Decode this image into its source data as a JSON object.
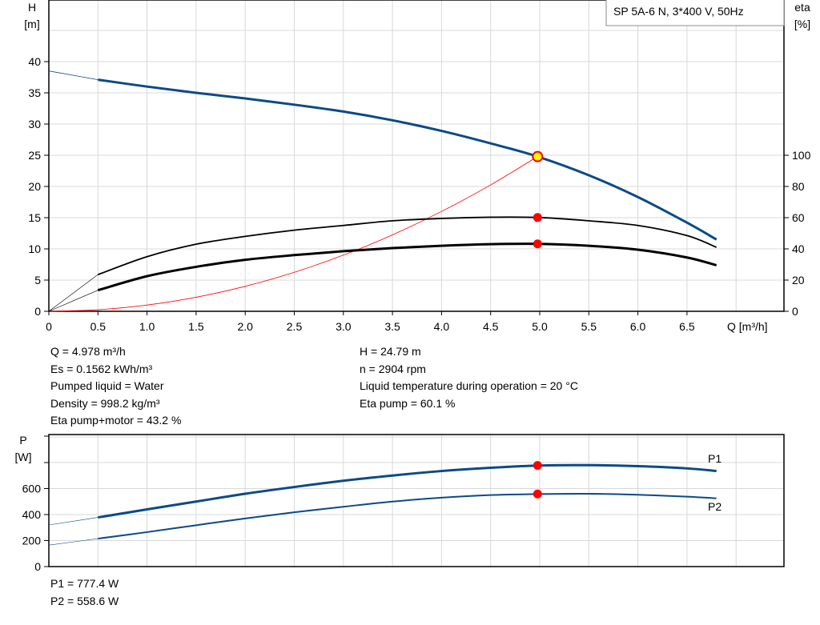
{
  "legend_title": "SP 5A-6 N, 3*400 V, 50Hz",
  "colors": {
    "head": "#0b4a87",
    "eta": "#000000",
    "system": "#ff0000",
    "point": "#ff0000",
    "duty_point_fill": "#ffff00",
    "power": "#0b4a87"
  },
  "chart_data": [
    {
      "type": "line",
      "xlabel": "Q [m³/h]",
      "ylabel": "H\n[m]",
      "ylabel_parts": [
        "H",
        "[m]"
      ],
      "y2label_parts": [
        "eta",
        "[%]"
      ],
      "xlim": [
        0,
        7.5
      ],
      "ylim": [
        0,
        50
      ],
      "y2lim": [
        0,
        100
      ],
      "xticks": [
        "0",
        "0.5",
        "1.0",
        "1.5",
        "2.0",
        "2.5",
        "3.0",
        "3.5",
        "4.0",
        "4.5",
        "5.0",
        "5.5",
        "6.0",
        "6.5"
      ],
      "yticks": [
        "0",
        "5",
        "10",
        "15",
        "20",
        "25",
        "30",
        "35",
        "40"
      ],
      "y2ticks": [
        "0",
        "20",
        "40",
        "60",
        "80",
        "100"
      ],
      "grid": true,
      "series": [
        {
          "id": "head",
          "axis": "H",
          "x": [
            0,
            0.5,
            1,
            1.5,
            2,
            2.5,
            3,
            3.5,
            4,
            4.5,
            4.978,
            5.5,
            6,
            6.5,
            6.8
          ],
          "y": [
            38.5,
            37.1,
            36,
            35,
            34.1,
            33.1,
            32,
            30.6,
            28.9,
            26.9,
            24.79,
            21.8,
            18.3,
            14.2,
            11.5
          ]
        },
        {
          "id": "eta_pump",
          "axis": "eta",
          "x": [
            0,
            0.5,
            1,
            1.5,
            2,
            2.5,
            3,
            3.5,
            4,
            4.5,
            5,
            5.5,
            6,
            6.5,
            6.8
          ],
          "y": [
            0,
            23.5,
            35,
            43,
            48,
            52,
            55,
            58,
            59.5,
            60.3,
            60.1,
            58,
            55,
            48.5,
            41
          ]
        },
        {
          "id": "eta_pump_motor",
          "axis": "eta",
          "x": [
            0,
            0.5,
            1,
            1.5,
            2,
            2.5,
            3,
            3.5,
            4,
            4.5,
            5,
            5.5,
            6,
            6.5,
            6.8
          ],
          "y": [
            0,
            13.5,
            22.5,
            28.5,
            33,
            36,
            38.5,
            40.5,
            42,
            43,
            43.2,
            42,
            39.5,
            34.5,
            29.5
          ]
        },
        {
          "id": "system_curve",
          "axis": "H",
          "x": [
            0,
            0.5,
            1,
            1.5,
            2,
            2.5,
            3,
            3.5,
            4,
            4.5,
            4.978
          ],
          "y": [
            0,
            0.25,
            1,
            2.25,
            4,
            6.25,
            9,
            12.25,
            16,
            20.25,
            24.79
          ]
        }
      ],
      "points": [
        {
          "id": "duty",
          "x": 4.978,
          "y": 24.79,
          "axis": "H"
        },
        {
          "id": "eta_pump_point",
          "x": 4.978,
          "y": 60.1,
          "axis": "eta"
        },
        {
          "id": "eta_total_point",
          "x": 4.978,
          "y": 43.2,
          "axis": "eta"
        }
      ]
    },
    {
      "type": "line",
      "ylabel_parts": [
        "P",
        "[W]"
      ],
      "xlim": [
        0,
        7.5
      ],
      "ylim": [
        0,
        1000
      ],
      "yticks": [
        "0",
        "200",
        "400",
        "600"
      ],
      "grid": true,
      "series": [
        {
          "id": "P1",
          "name": "P1",
          "x": [
            0,
            0.5,
            1,
            1.5,
            2,
            2.5,
            3,
            3.5,
            4,
            4.5,
            5,
            5.5,
            6,
            6.5,
            6.8
          ],
          "y": [
            320,
            378,
            440,
            500,
            560,
            612,
            660,
            700,
            735,
            760,
            777,
            780,
            772,
            755,
            735
          ]
        },
        {
          "id": "P2",
          "name": "P2",
          "x": [
            0,
            0.5,
            1,
            1.5,
            2,
            2.5,
            3,
            3.5,
            4,
            4.5,
            5,
            5.5,
            6,
            6.5,
            6.8
          ],
          "y": [
            165,
            215,
            265,
            318,
            370,
            418,
            460,
            500,
            530,
            550,
            558,
            560,
            552,
            538,
            525
          ]
        }
      ],
      "points": [
        {
          "id": "p1_point",
          "x": 4.978,
          "y": 777.4
        },
        {
          "id": "p2_point",
          "x": 4.978,
          "y": 558.6
        }
      ]
    }
  ],
  "info_left": [
    "Q = 4.978 m³/h",
    "Es = 0.1562 kWh/m³",
    "Pumped liquid = Water",
    "Density = 998.2 kg/m³",
    "Eta pump+motor = 43.2 %"
  ],
  "info_right": [
    "H = 24.79 m",
    "n = 2904 rpm",
    "Liquid temperature during operation = 20 °C",
    "Eta pump = 60.1 %"
  ],
  "power_info": [
    "P1 = 777.4 W",
    "P2 = 558.6 W"
  ]
}
